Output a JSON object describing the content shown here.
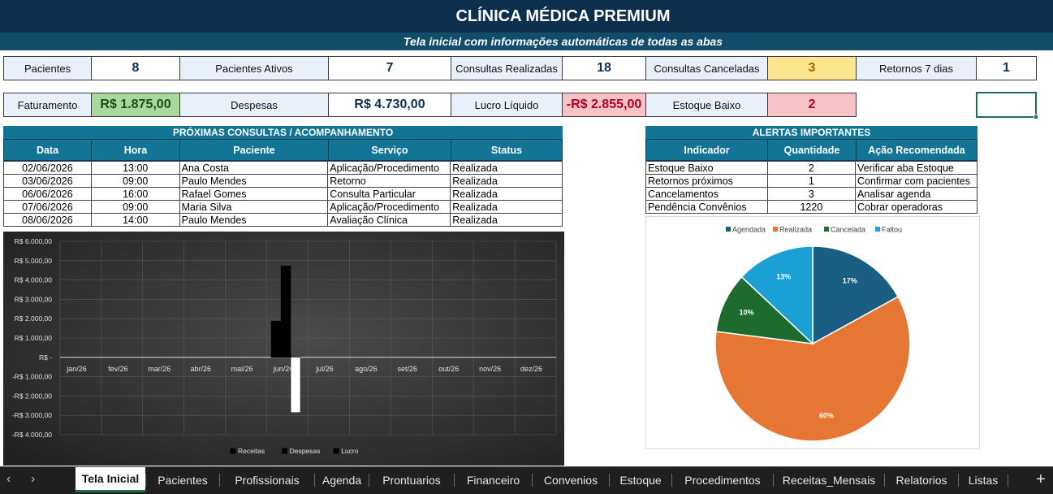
{
  "header": {
    "title": "CLÍNICA MÉDICA PREMIUM",
    "subtitle": "Tela inicial com informações automáticas de todas as abas"
  },
  "kpis_row1": [
    {
      "label": "Pacientes",
      "value": "8"
    },
    {
      "label": "Pacientes Ativos",
      "value": "7"
    },
    {
      "label": "Consultas Realizadas",
      "value": "18"
    },
    {
      "label": "Consultas Canceladas",
      "value": "3"
    },
    {
      "label": "Retornos 7 dias",
      "value": "1"
    }
  ],
  "kpis_row2": [
    {
      "label": "Faturamento",
      "value": "R$ 1.875,00"
    },
    {
      "label": "Despesas",
      "value": "R$ 4.730,00"
    },
    {
      "label": "Lucro Líquido",
      "value": "-R$ 2.855,00"
    },
    {
      "label": "Estoque Baixo",
      "value": "2"
    }
  ],
  "colors": {
    "canceladas_bg": "#fde58f",
    "faturamento_bg": "#a9d99a",
    "lucro_bg": "#f7c3c7",
    "estoque_bg": "#f7c3c7",
    "header_dark": "#0c2f4e",
    "section_teal": "#127596"
  },
  "consultas": {
    "title": "PRÓXIMAS CONSULTAS / ACOMPANHAMENTO",
    "columns": [
      "Data",
      "Hora",
      "Paciente",
      "Serviço",
      "Status"
    ],
    "rows": [
      [
        "02/06/2026",
        "13:00",
        "Ana Costa",
        "Aplicação/Procedimento",
        "Realizada"
      ],
      [
        "03/06/2026",
        "09:00",
        "Paulo Mendes",
        "Retorno",
        "Realizada"
      ],
      [
        "06/06/2026",
        "16:00",
        "Rafael Gomes",
        "Consulta Particular",
        "Realizada"
      ],
      [
        "07/06/2026",
        "09:00",
        "Maria Silva",
        "Aplicação/Procedimento",
        "Realizada"
      ],
      [
        "08/06/2026",
        "14:00",
        "Paulo Mendes",
        "Avaliação Clínica",
        "Realizada"
      ]
    ]
  },
  "alertas": {
    "title": "ALERTAS IMPORTANTES",
    "columns": [
      "Indicador",
      "Quantidade",
      "Ação Recomendada"
    ],
    "rows": [
      [
        "Estoque Baixo",
        "2",
        "Verificar aba Estoque"
      ],
      [
        "Retornos próximos",
        "1",
        "Confirmar com pacientes"
      ],
      [
        "Cancelamentos",
        "3",
        "Analisar agenda"
      ],
      [
        "Pendência Convênios",
        "1220",
        "Cobrar operadoras"
      ]
    ]
  },
  "chart_data": [
    {
      "type": "bar",
      "categories": [
        "jan/26",
        "fev/26",
        "mar/26",
        "abr/26",
        "mai/26",
        "jun/26",
        "jul/26",
        "ago/26",
        "set/26",
        "out/26",
        "nov/26",
        "dez/26"
      ],
      "series": [
        {
          "name": "Receitas",
          "values": [
            0,
            0,
            0,
            0,
            0,
            1875,
            0,
            0,
            0,
            0,
            0,
            0
          ],
          "color": "#000000"
        },
        {
          "name": "Despesas",
          "values": [
            0,
            0,
            0,
            0,
            0,
            4730,
            0,
            0,
            0,
            0,
            0,
            0
          ],
          "color": "#000000"
        },
        {
          "name": "Lucro",
          "values": [
            0,
            0,
            0,
            0,
            0,
            -2855,
            0,
            0,
            0,
            0,
            0,
            0
          ],
          "color": "#ffffff"
        }
      ],
      "y_ticks": [
        "R$ 6.000,00",
        "R$ 5.000,00",
        "R$ 4.000,00",
        "R$ 3.000,00",
        "R$ 2.000,00",
        "R$ 1.000,00",
        "R$ -",
        "-R$ 1.000,00",
        "-R$ 2.000,00",
        "-R$ 3.000,00",
        "-R$ 4.000,00"
      ],
      "ylim": [
        -4000,
        6000
      ],
      "grid": true,
      "legend": "bottom"
    },
    {
      "type": "pie",
      "categories": [
        "Agendada",
        "Realizada",
        "Cancelada",
        "Faltou"
      ],
      "values": [
        17,
        60,
        10,
        13
      ],
      "labels": [
        "17%",
        "60%",
        "10%",
        "13%"
      ],
      "colors": [
        "#1b5e83",
        "#e67634",
        "#1e6b2e",
        "#1aa0d4"
      ],
      "legend": "top"
    }
  ],
  "tabs": {
    "items": [
      "Tela Inicial",
      "Pacientes",
      "Profissionais",
      "Agenda",
      "Prontuarios",
      "Financeiro",
      "Convenios",
      "Estoque",
      "Procedimentos",
      "Receitas_Mensais",
      "Relatorios",
      "Listas"
    ],
    "active": "Tela Inicial",
    "add_glyph": "+",
    "prev_glyph": "‹",
    "next_glyph": "›"
  }
}
